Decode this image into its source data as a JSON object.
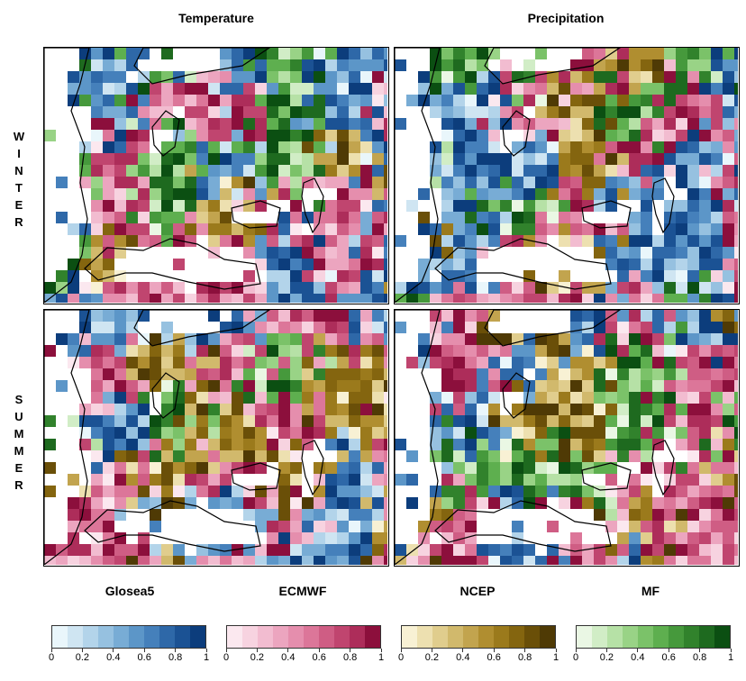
{
  "columns": {
    "left_title": "Temperature",
    "right_title": "Precipitation"
  },
  "rows": {
    "top_label": "WINTER",
    "bottom_label": "SUMMER"
  },
  "models": [
    "Glosea5",
    "ECMWF",
    "NCEP",
    "MF"
  ],
  "legends": [
    {
      "model": "Glosea5",
      "palette": [
        "#e9f6fb",
        "#cfe5f2",
        "#b3d4ea",
        "#96c1e0",
        "#78acd5",
        "#5c96c8",
        "#4580bb",
        "#2e68a8",
        "#1b5294",
        "#0c3d7c"
      ]
    },
    {
      "model": "ECMWF",
      "palette": [
        "#fbe8ef",
        "#f7d3e0",
        "#f2bcd0",
        "#eca5bf",
        "#e58ead",
        "#dc7699",
        "#cf5d84",
        "#c0456f",
        "#ad2d5a",
        "#8c0f3c"
      ]
    },
    {
      "model": "NCEP",
      "palette": [
        "#f8f1d4",
        "#ede0b0",
        "#e0cd8d",
        "#d1b96c",
        "#c2a44e",
        "#b08e30",
        "#9b7a1c",
        "#84650f",
        "#6a4f08",
        "#4f3a05"
      ]
    },
    {
      "model": "MF",
      "palette": [
        "#eaf7e4",
        "#d1edc6",
        "#b6e1a6",
        "#99d386",
        "#7bc269",
        "#5eaf4f",
        "#46993c",
        "#31822c",
        "#1e6a1f",
        "#0b4f12"
      ]
    }
  ],
  "tick_labels": [
    "0",
    "0.2",
    "0.4",
    "0.6",
    "0.8",
    "1"
  ],
  "panels": [
    {
      "row": "WINTER",
      "column": "Temperature",
      "dominant_models": [
        "Glosea5",
        "ECMWF",
        "MF",
        "NCEP"
      ]
    },
    {
      "row": "WINTER",
      "column": "Precipitation",
      "dominant_models": [
        "Glosea5",
        "ECMWF",
        "MF",
        "NCEP"
      ]
    },
    {
      "row": "SUMMER",
      "column": "Temperature",
      "dominant_models": [
        "ECMWF",
        "Glosea5",
        "NCEP",
        "MF"
      ]
    },
    {
      "row": "SUMMER",
      "column": "Precipitation",
      "dominant_models": [
        "ECMWF",
        "NCEP",
        "Glosea5",
        "MF"
      ]
    }
  ]
}
